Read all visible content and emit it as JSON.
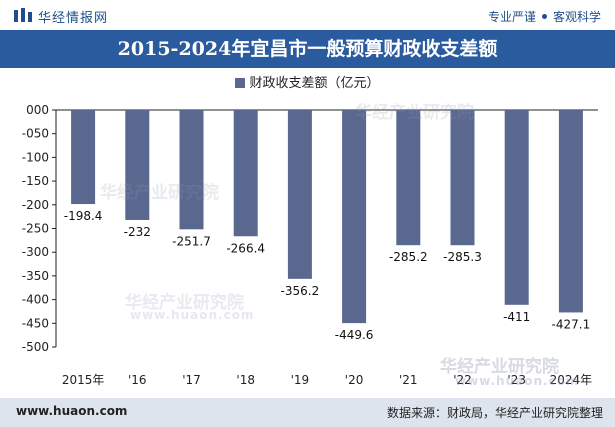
{
  "header": {
    "brand_name": "华经情报网",
    "slogan_left": "专业严谨",
    "slogan_right": "客观科学"
  },
  "footer": {
    "url": "www.huaon.com",
    "source": "数据来源：财政局，华经产业研究院整理"
  },
  "watermark": {
    "name": "华经产业研究院",
    "domain": "www.huaon.com"
  },
  "colors": {
    "bar": "#5a6890",
    "title_band": "#2a5b9e",
    "footer_band": "#dde4ee"
  },
  "chart_data": {
    "type": "bar",
    "title": "2015-2024年宜昌市一般预算财政收支差额",
    "legend": [
      "财政收支差额（亿元）"
    ],
    "categories": [
      "2015年",
      "'16",
      "'17",
      "'18",
      "'19",
      "'20",
      "'21",
      "'22",
      "'23",
      "2024年"
    ],
    "series": [
      {
        "name": "财政收支差额（亿元）",
        "values": [
          -198.4,
          -232,
          -251.7,
          -266.4,
          -356.2,
          -449.6,
          -285.2,
          -285.3,
          -411,
          -427.1
        ],
        "labels": [
          "-198.4",
          "-232",
          "-251.7",
          "-266.4",
          "-356.2",
          "-449.6",
          "-285.2",
          "-285.3",
          "-411",
          "-427.1"
        ]
      }
    ],
    "ylim": [
      -500,
      0
    ],
    "yticks": [
      0,
      -50,
      -100,
      -150,
      -200,
      -250,
      -300,
      -350,
      -400,
      -450,
      -500
    ],
    "ytick_labels": [
      "000",
      "-050",
      "-100",
      "-150",
      "-200",
      "-250",
      "-300",
      "-350",
      "-400",
      "-450",
      "-500"
    ],
    "xlabel": "",
    "ylabel": "",
    "grid": false
  }
}
